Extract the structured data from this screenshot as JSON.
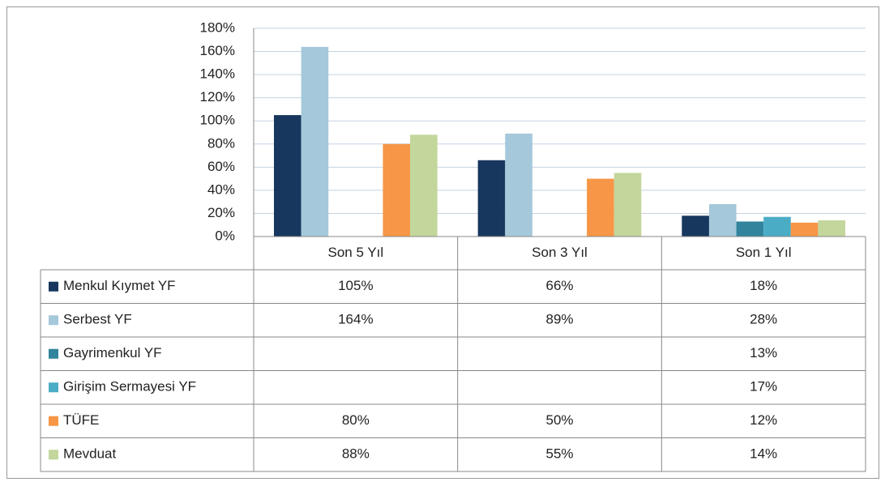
{
  "chart_data": {
    "type": "bar",
    "categories": [
      "Son 5 Yıl",
      "Son 3 Yıl",
      "Son 1 Yıl"
    ],
    "series": [
      {
        "name": "Menkul Kıymet YF",
        "color": "#17375e",
        "values": [
          105,
          66,
          18
        ],
        "value_labels": [
          "105%",
          "66%",
          "18%"
        ]
      },
      {
        "name": "Serbest YF",
        "color": "#a5c8da",
        "values": [
          164,
          89,
          28
        ],
        "value_labels": [
          "164%",
          "89%",
          "28%"
        ]
      },
      {
        "name": "Gayrimenkul YF",
        "color": "#31849b",
        "values": [
          null,
          null,
          13
        ],
        "value_labels": [
          null,
          null,
          "13%"
        ]
      },
      {
        "name": "Girişim Sermayesi YF",
        "color": "#4bacc6",
        "values": [
          null,
          null,
          17
        ],
        "value_labels": [
          null,
          null,
          "17%"
        ]
      },
      {
        "name": "TÜFE",
        "color": "#f79646",
        "values": [
          80,
          50,
          12
        ],
        "value_labels": [
          "80%",
          "50%",
          "12%"
        ]
      },
      {
        "name": "Mevduat",
        "color": "#c3d69b",
        "values": [
          88,
          55,
          14
        ],
        "value_labels": [
          "88%",
          "55%",
          "14%"
        ]
      }
    ],
    "ylim": [
      0,
      180
    ],
    "yticks": [
      {
        "value": 0,
        "label": "0%"
      },
      {
        "value": 20,
        "label": "20%"
      },
      {
        "value": 40,
        "label": "40%"
      },
      {
        "value": 60,
        "label": "60%"
      },
      {
        "value": 80,
        "label": "80%"
      },
      {
        "value": 100,
        "label": "100%"
      },
      {
        "value": 120,
        "label": "120%"
      },
      {
        "value": 140,
        "label": "140%"
      },
      {
        "value": 160,
        "label": "160%"
      },
      {
        "value": 180,
        "label": "180%"
      }
    ],
    "grid": true
  }
}
